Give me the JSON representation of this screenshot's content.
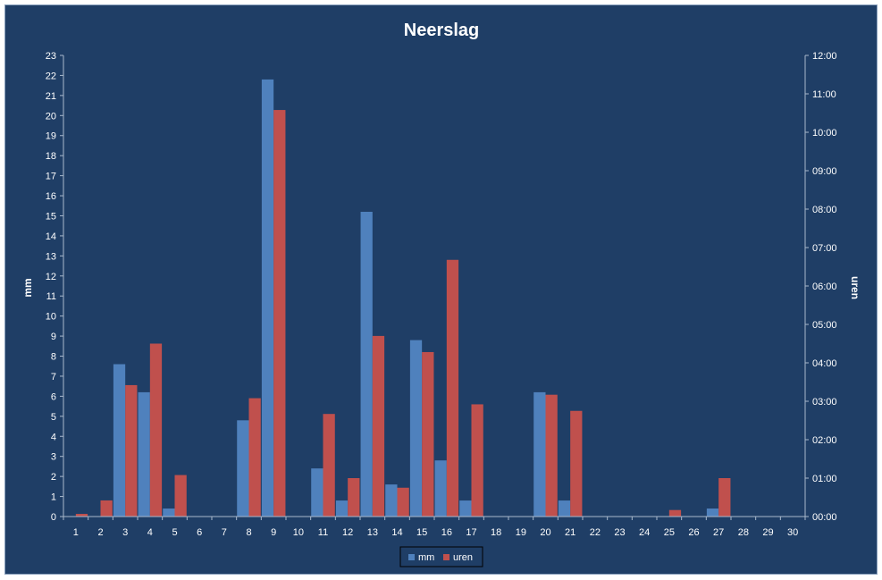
{
  "chart_data": {
    "type": "bar",
    "title": "Neerslag",
    "xlabel": "",
    "ylabel": "mm",
    "y2label": "uren",
    "categories": [
      "1",
      "2",
      "3",
      "4",
      "5",
      "6",
      "7",
      "8",
      "9",
      "10",
      "11",
      "12",
      "13",
      "14",
      "15",
      "16",
      "17",
      "18",
      "19",
      "20",
      "21",
      "22",
      "23",
      "24",
      "25",
      "26",
      "27",
      "28",
      "29",
      "30"
    ],
    "series": [
      {
        "name": "mm",
        "axis": "left",
        "color": "#4f81bd",
        "values": [
          0,
          0,
          7.6,
          6.2,
          0.4,
          0,
          0,
          4.8,
          21.8,
          0,
          2.4,
          0.8,
          15.2,
          1.6,
          8.8,
          2.8,
          0.8,
          0,
          0,
          6.2,
          0.8,
          0,
          0,
          0,
          0,
          0,
          0.4,
          0,
          0,
          0
        ]
      },
      {
        "name": "uren",
        "axis": "right",
        "color": "#c0504d",
        "values_hours": [
          0.07,
          0.42,
          3.42,
          4.5,
          1.08,
          0,
          0,
          3.08,
          10.58,
          0,
          2.67,
          1.0,
          4.7,
          0.75,
          4.28,
          6.68,
          2.92,
          0,
          0,
          3.17,
          2.75,
          0,
          0,
          0,
          0.17,
          0,
          1.0,
          0,
          0,
          0
        ]
      }
    ],
    "ylim": [
      0,
      23
    ],
    "yticks": [
      "0",
      "1",
      "2",
      "3",
      "4",
      "5",
      "6",
      "7",
      "8",
      "9",
      "10",
      "11",
      "12",
      "13",
      "14",
      "15",
      "16",
      "17",
      "18",
      "19",
      "20",
      "21",
      "22",
      "23"
    ],
    "y2lim_hours": [
      0,
      12
    ],
    "y2ticks": [
      "00:00",
      "01:00",
      "02:00",
      "03:00",
      "04:00",
      "05:00",
      "06:00",
      "07:00",
      "08:00",
      "09:00",
      "10:00",
      "11:00",
      "12:00"
    ],
    "grid": false,
    "legend_position": "bottom",
    "colors": {
      "background": "#1f3e66",
      "text": "#ffffff",
      "axis": "#a8b8cc"
    }
  }
}
